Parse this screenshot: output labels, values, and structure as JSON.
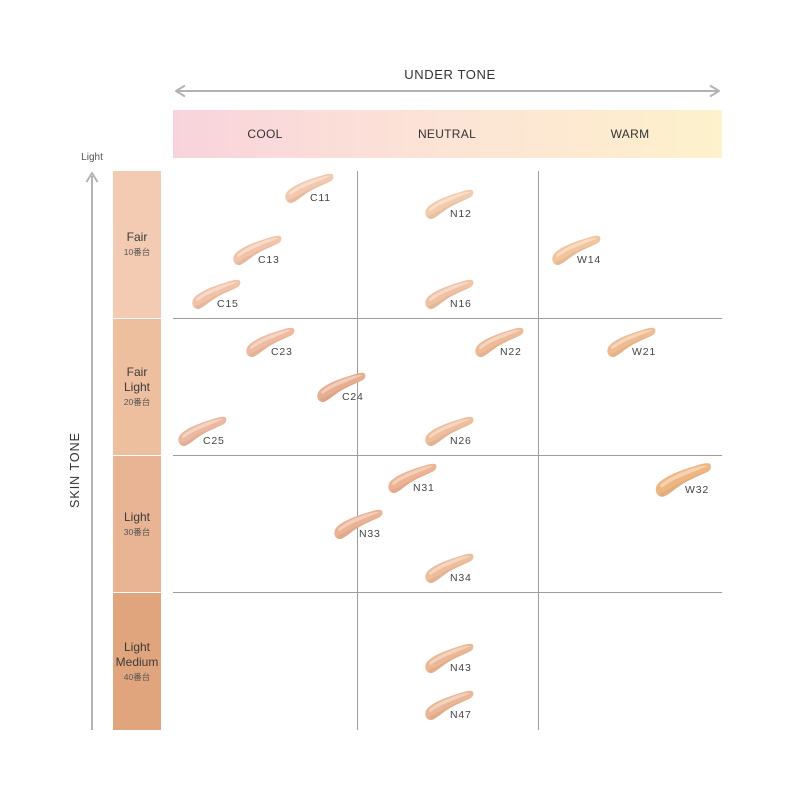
{
  "header": {
    "under_tone_label": "UNDER TONE"
  },
  "undertones": [
    {
      "label": "COOL"
    },
    {
      "label": "NEUTRAL"
    },
    {
      "label": "WARM"
    }
  ],
  "skin_tone": {
    "axis_label": "SKIN TONE",
    "light_end_label": "Light"
  },
  "skin_tone_groups": [
    {
      "name": "Fair",
      "series": "10番台",
      "color": "#f3cbb2"
    },
    {
      "name": "Fair Light",
      "series": "20番台",
      "color": "#eebf9f"
    },
    {
      "name": "Light",
      "series": "30番台",
      "color": "#e8b493"
    },
    {
      "name": "Light Medium",
      "series": "40番台",
      "color": "#e0a57c"
    }
  ],
  "swatches": [
    {
      "label": "C11",
      "color": "#f2c8ae"
    },
    {
      "label": "N12",
      "color": "#f2cbad"
    },
    {
      "label": "C13",
      "color": "#f1c4aa"
    },
    {
      "label": "W14",
      "color": "#f2c59d"
    },
    {
      "label": "C15",
      "color": "#f0c2a8"
    },
    {
      "label": "N16",
      "color": "#efc2a3"
    },
    {
      "label": "C23",
      "color": "#eebba0"
    },
    {
      "label": "N22",
      "color": "#eebb99"
    },
    {
      "label": "W21",
      "color": "#efbc92"
    },
    {
      "label": "C24",
      "color": "#e8ae92"
    },
    {
      "label": "C25",
      "color": "#ecb9a0"
    },
    {
      "label": "N26",
      "color": "#eebd9c"
    },
    {
      "label": "N31",
      "color": "#ecb493"
    },
    {
      "label": "W32",
      "color": "#eeb683"
    },
    {
      "label": "N33",
      "color": "#ebb293"
    },
    {
      "label": "N34",
      "color": "#eebd9c"
    },
    {
      "label": "N43",
      "color": "#ebb895"
    },
    {
      "label": "N47",
      "color": "#eab796"
    }
  ],
  "colors": {
    "under_tone_gradient": [
      "#f8d3dc",
      "#fbdcd9",
      "#fce4d6",
      "#fdead1",
      "#fdf2cb"
    ],
    "grid_line": "#9d9d9d",
    "arrow": "#b3b3b3"
  }
}
